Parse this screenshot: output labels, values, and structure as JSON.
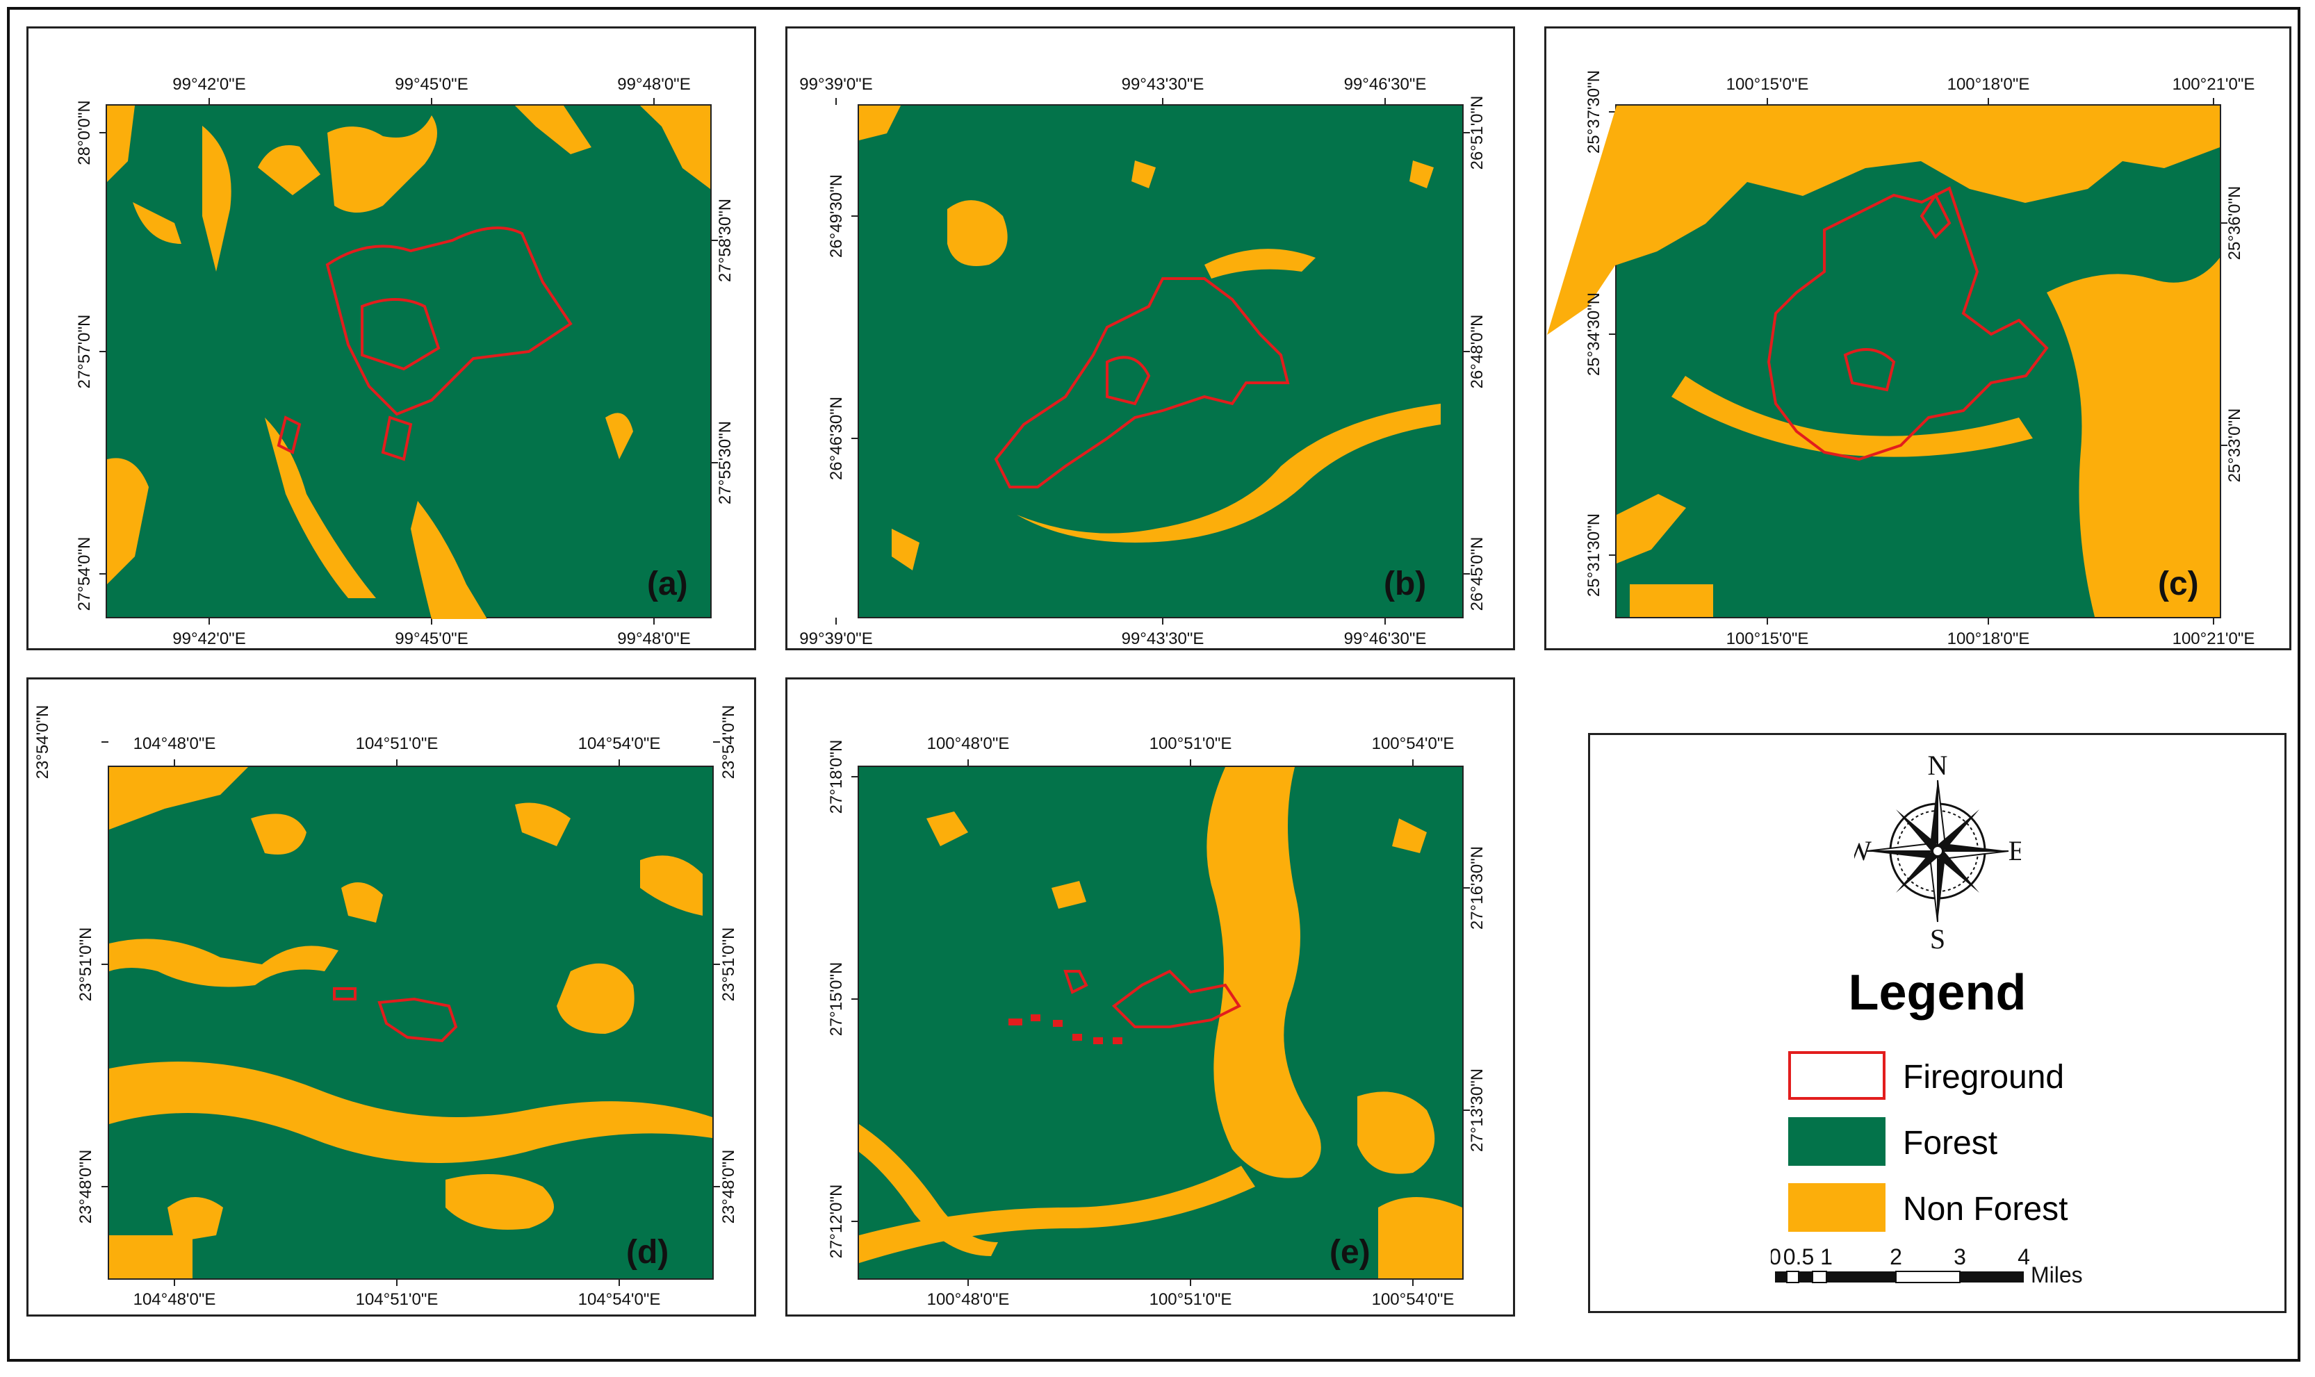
{
  "colors": {
    "forest": "#03734a",
    "non_forest": "#fcae0b",
    "fireground": "#e21d1d",
    "frame": "#111111"
  },
  "panels": [
    {
      "letter": "(a)",
      "top_labels": [
        "99°42'0\"E",
        "99°45'0\"E",
        "99°48'0\"E"
      ],
      "bottom_labels": [
        "99°42'0\"E",
        "99°45'0\"E",
        "99°48'0\"E"
      ],
      "left_labels": [
        "28°0'0\"N",
        "27°57'0\"N",
        "27°54'0\"N"
      ],
      "right_labels": [
        "27°58'30\"N",
        "27°55'30\"N"
      ]
    },
    {
      "letter": "(b)",
      "top_labels": [
        "99°39'0\"E",
        "99°43'30\"E",
        "99°46'30\"E"
      ],
      "bottom_labels": [
        "99°39'0\"E",
        "99°43'30\"E",
        "99°46'30\"E"
      ],
      "left_labels": [
        "26°49'30\"N",
        "26°46'30\"N"
      ],
      "right_labels": [
        "26°51'0\"N",
        "26°48'0\"N",
        "26°45'0\"N"
      ]
    },
    {
      "letter": "(c)",
      "top_labels": [
        "100°15'0\"E",
        "100°18'0\"E",
        "100°21'0\"E"
      ],
      "bottom_labels": [
        "100°15'0\"E",
        "100°18'0\"E",
        "100°21'0\"E"
      ],
      "left_labels": [
        "25°37'30\"N",
        "25°34'30\"N",
        "25°31'30\"N"
      ],
      "right_labels": [
        "25°36'0\"N",
        "25°33'0\"N"
      ]
    },
    {
      "letter": "(d)",
      "top_labels": [
        "104°48'0\"E",
        "104°51'0\"E",
        "104°54'0\"E"
      ],
      "bottom_labels": [
        "104°48'0\"E",
        "104°51'0\"E",
        "104°54'0\"E"
      ],
      "left_labels": [
        "23°54'0\"N",
        "23°51'0\"N",
        "23°48'0\"N"
      ],
      "right_labels": [
        "23°54'0\"N",
        "23°51'0\"N",
        "23°48'0\"N"
      ]
    },
    {
      "letter": "(e)",
      "top_labels": [
        "100°48'0\"E",
        "100°51'0\"E",
        "100°54'0\"E"
      ],
      "bottom_labels": [
        "100°48'0\"E",
        "100°51'0\"E",
        "100°54'0\"E"
      ],
      "left_labels": [
        "27°18'0\"N",
        "27°15'0\"N",
        "27°12'0\"N"
      ],
      "right_labels": [
        "27°16'30\"N",
        "27°13'30\"N"
      ]
    }
  ],
  "legend": {
    "title": "Legend",
    "compass": {
      "n": "N",
      "s": "S",
      "e": "E",
      "w": "W"
    },
    "items": [
      {
        "label": "Fireground"
      },
      {
        "label": "Forest"
      },
      {
        "label": "Non Forest"
      }
    ],
    "scale": {
      "ticks": [
        "0",
        "0.5",
        "1",
        "2",
        "3",
        "4"
      ],
      "unit": "Miles"
    }
  }
}
